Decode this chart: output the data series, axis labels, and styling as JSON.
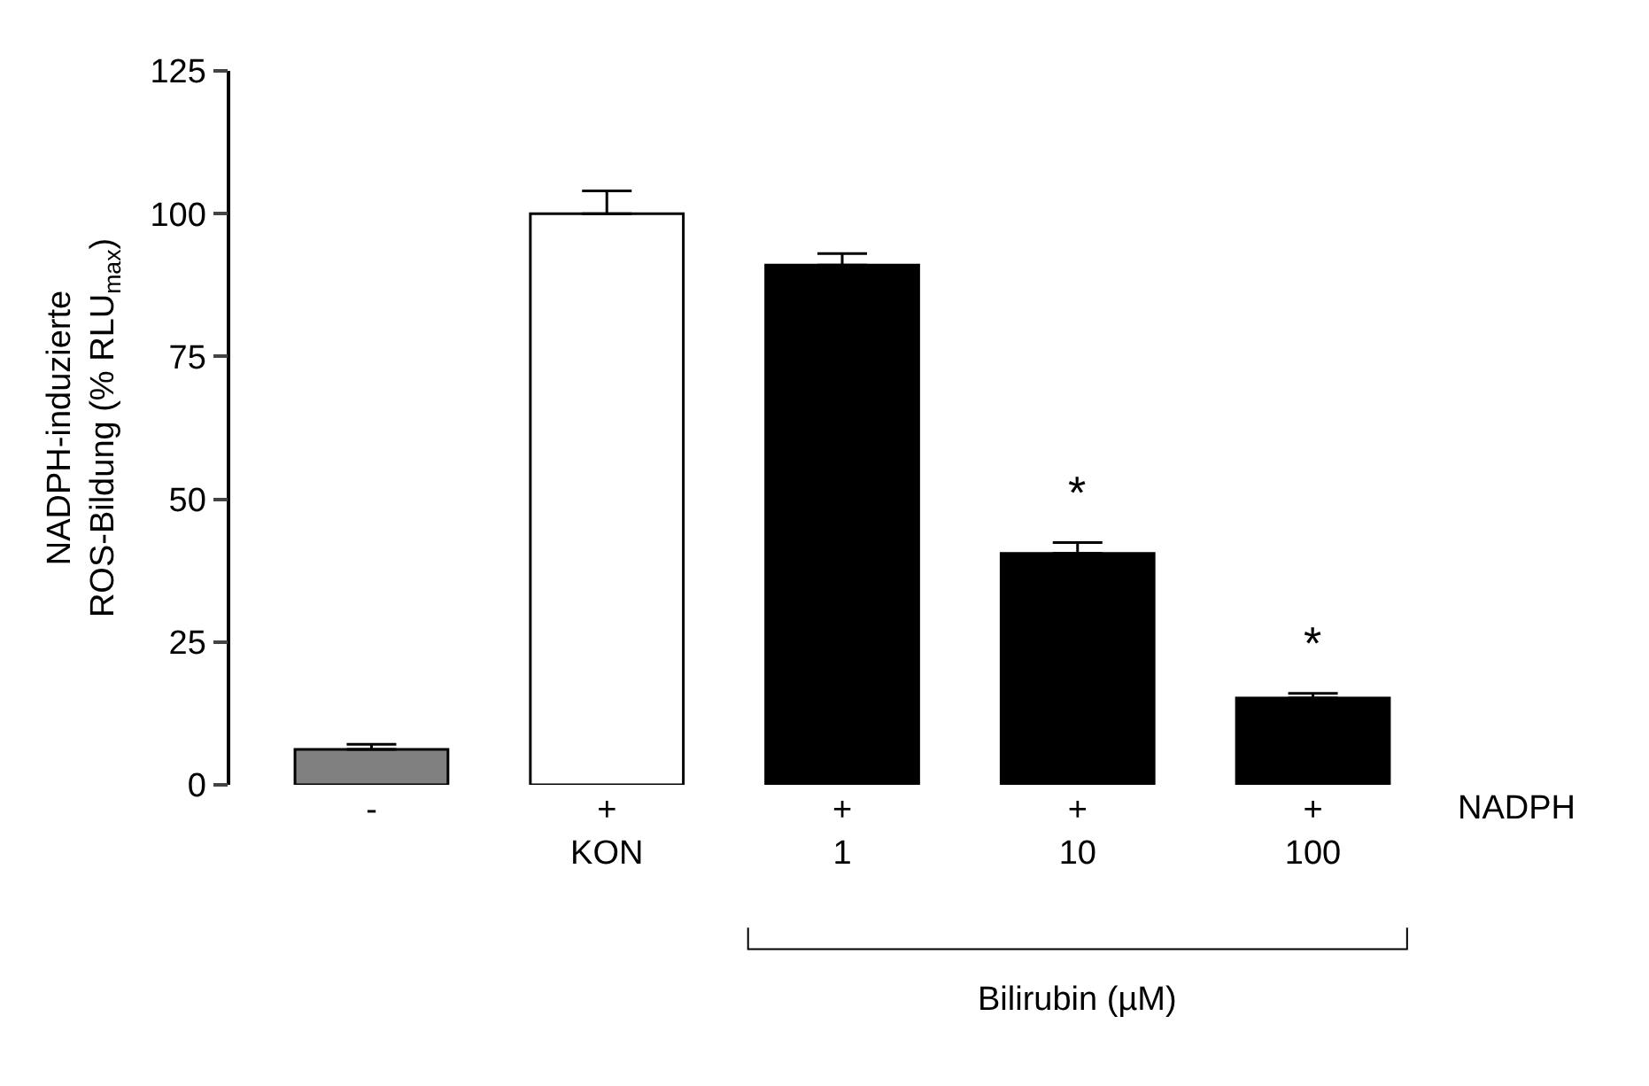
{
  "chart_data": {
    "type": "bar",
    "ylabel": "NADPH-induzierte\nROS-Bildung (% RLU$_{max}$)",
    "categories": [
      "-",
      "+\nKON",
      "+\n1",
      "+\n10",
      "+\n100"
    ],
    "values": [
      6.2,
      100,
      91,
      40.5,
      15.2
    ],
    "colors": [
      "#808080",
      "#ffffff",
      "#000000",
      "#000000",
      "#000000"
    ],
    "errors": [
      [
        6.2,
        7.1
      ],
      [
        100,
        104
      ],
      [
        91,
        93
      ],
      [
        40.5,
        42.4
      ],
      [
        15.2,
        16
      ]
    ],
    "ylim": [
      0,
      125
    ],
    "yticks": [
      0,
      25,
      50,
      75,
      100,
      125
    ],
    "legend": false,
    "annotations": [
      "NADPH",
      "Bilirubin (µM)",
      "*",
      "*"
    ]
  }
}
